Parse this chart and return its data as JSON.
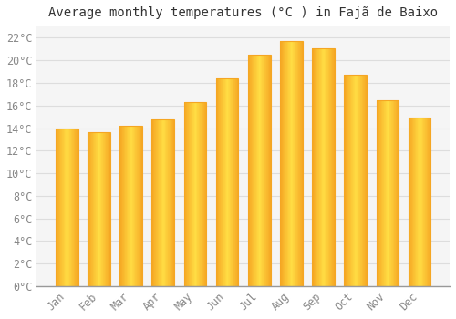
{
  "title": "Average monthly temperatures (°C ) in Fajã de Baixo",
  "months": [
    "Jan",
    "Feb",
    "Mar",
    "Apr",
    "May",
    "Jun",
    "Jul",
    "Aug",
    "Sep",
    "Oct",
    "Nov",
    "Dec"
  ],
  "values": [
    14.0,
    13.6,
    14.2,
    14.8,
    16.3,
    18.4,
    20.5,
    21.7,
    21.1,
    18.7,
    16.5,
    14.9
  ],
  "bar_color_face": "#FFCC33",
  "bar_color_edge": "#F5A623",
  "background_color": "#FFFFFF",
  "plot_bg_color": "#F5F5F5",
  "grid_color": "#DDDDDD",
  "tick_label_color": "#888888",
  "title_color": "#333333",
  "ylim": [
    0,
    23
  ],
  "yticks": [
    0,
    2,
    4,
    6,
    8,
    10,
    12,
    14,
    16,
    18,
    20,
    22
  ],
  "ytick_labels": [
    "0°C",
    "2°C",
    "4°C",
    "6°C",
    "8°C",
    "10°C",
    "12°C",
    "14°C",
    "16°C",
    "18°C",
    "20°C",
    "22°C"
  ],
  "title_fontsize": 10,
  "tick_fontsize": 8.5,
  "figsize": [
    5.0,
    3.5
  ],
  "dpi": 100
}
